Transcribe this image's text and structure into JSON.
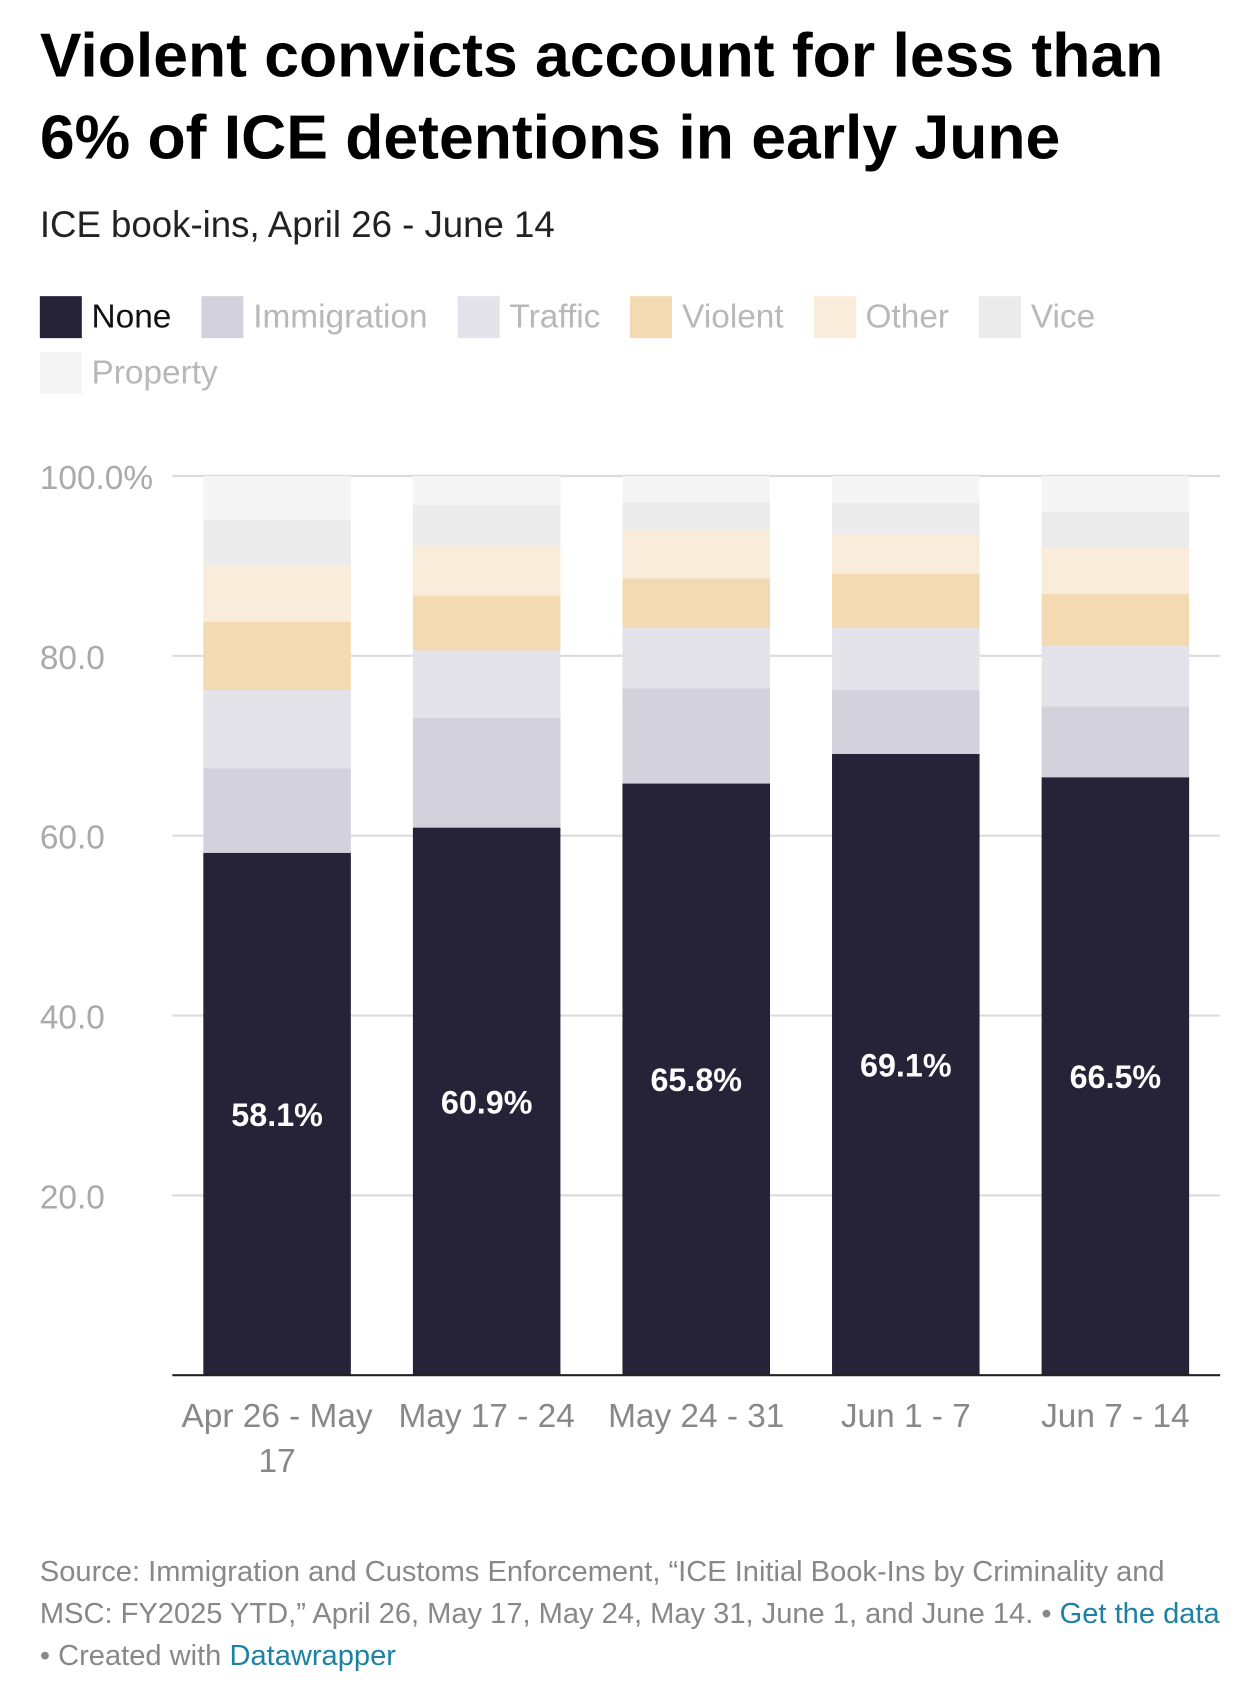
{
  "chart_data": {
    "type": "stacked_bar",
    "title": "Violent convicts account for less than 6% of ICE detentions in early June",
    "subtitle": "ICE book-ins, April 26 - June 14",
    "categories": [
      "Apr 26 - May 17",
      "May 17 - 24",
      "May 24 - 31",
      "Jun 1 - 7",
      "Jun 7 - 14"
    ],
    "series": [
      {
        "name": "None",
        "color": "#262338",
        "values": [
          58.1,
          60.9,
          65.8,
          69.1,
          66.5
        ],
        "value_labels": [
          "58.1%",
          "60.9%",
          "65.8%",
          "69.1%",
          "66.5%"
        ]
      },
      {
        "name": "Immigration",
        "color": "#d3d1dc",
        "values": [
          9.4,
          12.2,
          10.6,
          7.1,
          7.9
        ]
      },
      {
        "name": "Traffic",
        "color": "#e4e3ea",
        "values": [
          8.7,
          7.5,
          6.7,
          6.9,
          6.7
        ]
      },
      {
        "name": "Violent",
        "color": "#f4dab3",
        "values": [
          7.6,
          6.1,
          5.5,
          6.0,
          5.8
        ]
      },
      {
        "name": "Other",
        "color": "#f9ecda",
        "values": [
          6.3,
          5.5,
          5.4,
          4.4,
          5.2
        ]
      },
      {
        "name": "Vice",
        "color": "#ebebeb",
        "values": [
          5.0,
          4.6,
          3.1,
          3.5,
          3.9
        ]
      },
      {
        "name": "Property",
        "color": "#f5f5f5",
        "values": [
          4.9,
          3.2,
          2.9,
          3.0,
          4.0
        ]
      }
    ],
    "ylim": [
      0,
      100
    ],
    "yticks": [
      {
        "value": 20,
        "label": "20.0"
      },
      {
        "value": 40,
        "label": "40.0"
      },
      {
        "value": 60,
        "label": "60.0"
      },
      {
        "value": 80,
        "label": "80.0"
      },
      {
        "value": 100,
        "label": "100.0%"
      }
    ],
    "grid": true,
    "source": "Source: Immigration and Customs Enforcement, “ICE Initial Book-Ins by Criminality and MSC: FY2025 YTD,” April 26, May 17, May 24, May 31, June 1, and June 14.",
    "get_data": "Get the data",
    "created_with": "Created with",
    "credit": "Datawrapper"
  }
}
